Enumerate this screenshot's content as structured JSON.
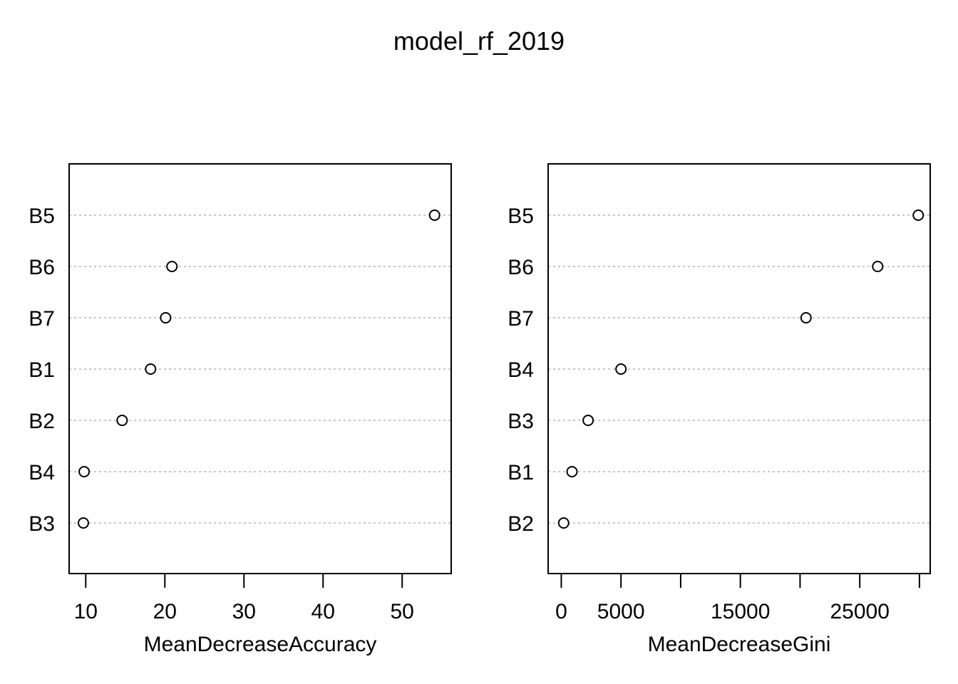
{
  "title": "model_rf_2019",
  "chart_data": [
    {
      "type": "dotchart",
      "xlabel": "MeanDecreaseAccuracy",
      "xlim": [
        7.9,
        56.2
      ],
      "x_ticks": [
        10,
        20,
        30,
        40,
        50
      ],
      "x_tick_labels": [
        "10",
        "20",
        "30",
        "40",
        "50"
      ],
      "grid": "dotted horizontal lines per category",
      "categories": [
        "B5",
        "B6",
        "B7",
        "B1",
        "B2",
        "B4",
        "B3"
      ],
      "values": [
        54.1,
        20.9,
        20.1,
        18.2,
        14.6,
        9.8,
        9.7
      ]
    },
    {
      "type": "dotchart",
      "xlabel": "MeanDecreaseGini",
      "xlim": [
        -1100,
        30900
      ],
      "x_ticks": [
        0,
        5000,
        10000,
        15000,
        20000,
        25000,
        30000
      ],
      "x_tick_labels": [
        "0",
        "5000",
        "",
        "15000",
        "",
        "25000",
        ""
      ],
      "grid": "dotted horizontal lines per category",
      "categories": [
        "B5",
        "B6",
        "B7",
        "B4",
        "B3",
        "B1",
        "B2"
      ],
      "values": [
        29900,
        26500,
        20500,
        5000,
        2250,
        900,
        200
      ]
    }
  ]
}
